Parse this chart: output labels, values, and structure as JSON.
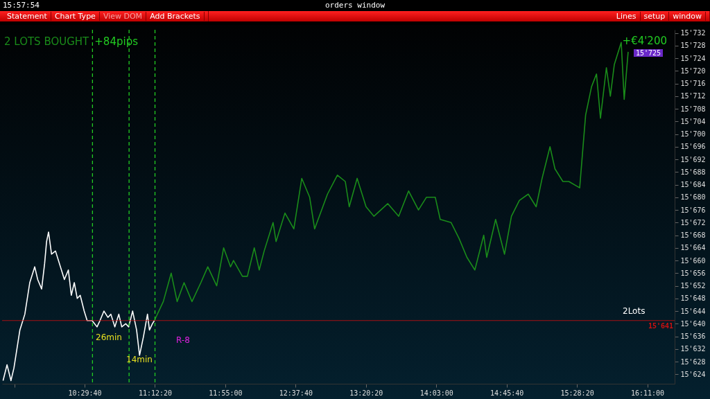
{
  "chart_data": {
    "type": "line",
    "title": "orders window",
    "annotations": [
      "15:57:54",
      "Statement",
      "Chart Type",
      "View DOM",
      "Add Brackets",
      "Lines",
      "setup",
      "window",
      "2 LOTS BOUGHT",
      "+84pips",
      "+€4'200",
      "26min",
      "14min",
      "R-8",
      "15'725",
      "2Lots"
    ],
    "xlim": [
      9.66,
      16.46
    ],
    "ylim": [
      15621,
      15733
    ],
    "xticks": [
      {
        "value": 9.78333,
        "label": null
      },
      {
        "value": 10.49444,
        "label": "10:29:40"
      },
      {
        "value": 11.20556,
        "label": "11:12:20"
      },
      {
        "value": 11.91667,
        "label": "11:55:00"
      },
      {
        "value": 12.62778,
        "label": "12:37:40"
      },
      {
        "value": 13.33889,
        "label": "13:20:20"
      },
      {
        "value": 14.05,
        "label": "14:03:00"
      },
      {
        "value": 14.76111,
        "label": "14:45:40"
      },
      {
        "value": 15.47222,
        "label": "15:28:20"
      },
      {
        "value": 16.18333,
        "label": "16:11:00"
      }
    ],
    "yticks": [
      {
        "value": 15624,
        "label": "15'624"
      },
      {
        "value": 15628,
        "label": "15'628"
      },
      {
        "value": 15632,
        "label": "15'632"
      },
      {
        "value": 15636,
        "label": "15'636"
      },
      {
        "value": 15640,
        "label": "15'640"
      },
      {
        "value": 15644,
        "label": "15'644"
      },
      {
        "value": 15648,
        "label": "15'648"
      },
      {
        "value": 15652,
        "label": "15'652"
      },
      {
        "value": 15656,
        "label": "15'656"
      },
      {
        "value": 15660,
        "label": "15'660"
      },
      {
        "value": 15664,
        "label": "15'664"
      },
      {
        "value": 15668,
        "label": "15'668"
      },
      {
        "value": 15672,
        "label": "15'672"
      },
      {
        "value": 15676,
        "label": "15'676"
      },
      {
        "value": 15680,
        "label": "15'680"
      },
      {
        "value": 15684,
        "label": "15'684"
      },
      {
        "value": 15688,
        "label": "15'688"
      },
      {
        "value": 15692,
        "label": "15'692"
      },
      {
        "value": 15696,
        "label": "15'696"
      },
      {
        "value": 15700,
        "label": "15'700"
      },
      {
        "value": 15704,
        "label": "15'704"
      },
      {
        "value": 15708,
        "label": "15'708"
      },
      {
        "value": 15712,
        "label": "15'712"
      },
      {
        "value": 15716,
        "label": "15'716"
      },
      {
        "value": 15720,
        "label": "15'720"
      },
      {
        "value": 15724,
        "label": "15'724"
      },
      {
        "value": 15728,
        "label": "15'728"
      },
      {
        "value": 15732,
        "label": "15'732"
      }
    ],
    "grid": false,
    "legend": false,
    "marker": "none",
    "line_style": "solid",
    "ref_lines": [
      {
        "axis": "y",
        "value": 15641,
        "label": "15'641",
        "color": "#d01010",
        "line_style": "solid"
      },
      {
        "axis": "x",
        "value": 10.574,
        "color": "#22cc22",
        "line_style": "dashed"
      },
      {
        "axis": "x",
        "value": 10.944,
        "color": "#22cc22",
        "line_style": "dashed"
      },
      {
        "axis": "x",
        "value": 11.206,
        "color": "#22cc22",
        "line_style": "dashed"
      }
    ],
    "series": [
      {
        "color": "#ffffff",
        "x": [
          9.67,
          9.71,
          9.75,
          9.78,
          9.84,
          9.89,
          9.94,
          9.99,
          10.02,
          10.06,
          10.09,
          10.11,
          10.13,
          10.16,
          10.2,
          10.26,
          10.29,
          10.33,
          10.36,
          10.39,
          10.42,
          10.45,
          10.49,
          10.52,
          10.57,
          10.62,
          10.65,
          10.69,
          10.73,
          10.76,
          10.8,
          10.84,
          10.87,
          10.91,
          10.94,
          10.98,
          11.02,
          11.05,
          11.09,
          11.13,
          11.15,
          11.18,
          11.2
        ],
        "values": [
          15622,
          15627,
          15622,
          15626,
          15638,
          15643,
          15653,
          15658,
          15654,
          15651,
          15659,
          15666,
          15669,
          15662,
          15663,
          15657,
          15654,
          15657,
          15649,
          15653,
          15648,
          15649,
          15644,
          15641,
          15641,
          15639,
          15641,
          15644,
          15642,
          15643,
          15639,
          15643,
          15639,
          15640,
          15639,
          15644,
          15638,
          15630,
          15636,
          15643,
          15638,
          15640,
          15641
        ]
      },
      {
        "color": "#1a8c1a",
        "x": [
          11.2,
          11.29,
          11.37,
          11.43,
          11.5,
          11.58,
          11.67,
          11.74,
          11.83,
          11.9,
          11.97,
          12.0,
          12.09,
          12.14,
          12.21,
          12.26,
          12.31,
          12.4,
          12.43,
          12.52,
          12.61,
          12.69,
          12.77,
          12.82,
          12.95,
          13.05,
          13.13,
          13.17,
          13.25,
          13.34,
          13.42,
          13.56,
          13.67,
          13.77,
          13.87,
          13.95,
          14.04,
          14.09,
          14.2,
          14.28,
          14.36,
          14.44,
          14.53,
          14.56,
          14.65,
          14.74,
          14.81,
          14.89,
          14.98,
          15.06,
          15.12,
          15.2,
          15.25,
          15.33,
          15.39,
          15.5,
          15.56,
          15.62,
          15.67,
          15.71,
          15.77,
          15.81,
          15.85,
          15.92,
          15.95,
          15.99
        ],
        "values": [
          15641,
          15647,
          15656,
          15647,
          15653,
          15647,
          15653,
          15658,
          15652,
          15664,
          15658,
          15660,
          15655,
          15655,
          15664,
          15657,
          15663,
          15672,
          15666,
          15675,
          15670,
          15686,
          15680,
          15670,
          15681,
          15687,
          15685,
          15677,
          15686,
          15677,
          15674,
          15678,
          15674,
          15682,
          15676,
          15680,
          15680,
          15673,
          15672,
          15667,
          15661,
          15657,
          15668,
          15661,
          15673,
          15662,
          15674,
          15679,
          15681,
          15677,
          15686,
          15696,
          15689,
          15685,
          15685,
          15683,
          15706,
          15715,
          15719,
          15705,
          15721,
          15712,
          15722,
          15729,
          15711,
          15726
        ]
      }
    ]
  }
}
